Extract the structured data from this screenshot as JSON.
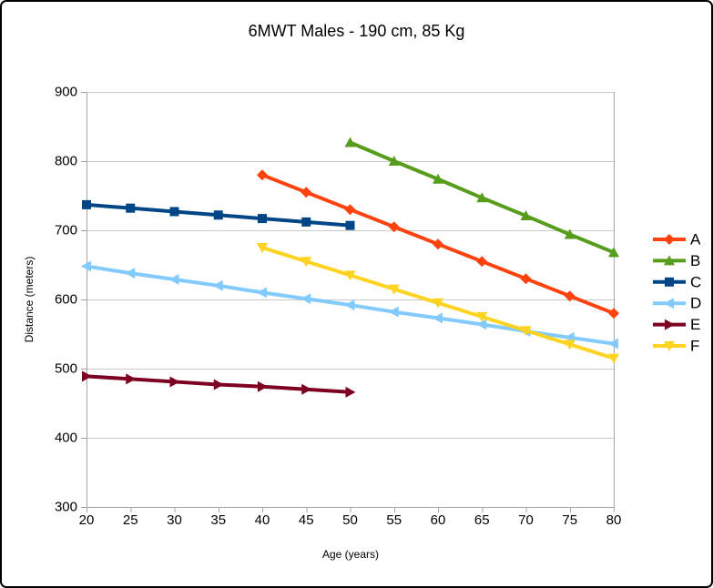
{
  "window": {
    "background": "#ffffff",
    "border_color": "#000000"
  },
  "colors": {
    "grid": "#c9c9c9",
    "axis": "#a6a6a6",
    "text": "#000000"
  },
  "chart_data": {
    "type": "line",
    "title": "6MWT Males - 190 cm, 85 Kg",
    "xlabel": "Age (years)",
    "ylabel": "Distance (meters)",
    "xlim": [
      20,
      80
    ],
    "ylim": [
      300,
      900
    ],
    "x_ticks": [
      20,
      25,
      30,
      35,
      40,
      45,
      50,
      55,
      60,
      65,
      70,
      75,
      80
    ],
    "y_ticks": [
      300,
      400,
      500,
      600,
      700,
      800,
      900
    ],
    "grid": "horizontal-only",
    "legend_position": "right",
    "series": [
      {
        "name": "A",
        "color": "#FF420E",
        "marker": "diamond",
        "x": [
          40,
          45,
          50,
          55,
          60,
          65,
          70,
          75,
          80
        ],
        "y": [
          780,
          755,
          730,
          705,
          680,
          655,
          630,
          605,
          580
        ]
      },
      {
        "name": "B",
        "color": "#579D1C",
        "marker": "triangle-up",
        "x": [
          50,
          55,
          60,
          65,
          70,
          75,
          80
        ],
        "y": [
          827,
          800,
          774,
          747,
          721,
          694,
          668
        ]
      },
      {
        "name": "C",
        "color": "#004586",
        "marker": "square",
        "x": [
          20,
          25,
          30,
          35,
          40,
          45,
          50
        ],
        "y": [
          737,
          732,
          727,
          722,
          717,
          712,
          707
        ]
      },
      {
        "name": "D",
        "color": "#83CAFF",
        "marker": "triangle-left",
        "x": [
          20,
          25,
          30,
          35,
          40,
          45,
          50,
          55,
          60,
          65,
          70,
          75,
          80
        ],
        "y": [
          648,
          638,
          629,
          620,
          610,
          601,
          592,
          582,
          573,
          564,
          554,
          545,
          536
        ]
      },
      {
        "name": "E",
        "color": "#7E0021",
        "marker": "triangle-right",
        "x": [
          20,
          25,
          30,
          35,
          40,
          45,
          50
        ],
        "y": [
          489,
          485,
          481,
          477,
          474,
          470,
          466
        ]
      },
      {
        "name": "F",
        "color": "#FFD320",
        "marker": "triangle-down",
        "x": [
          40,
          45,
          50,
          55,
          60,
          65,
          70,
          75,
          80
        ],
        "y": [
          675,
          655,
          635,
          615,
          595,
          575,
          555,
          535,
          515
        ]
      }
    ]
  }
}
